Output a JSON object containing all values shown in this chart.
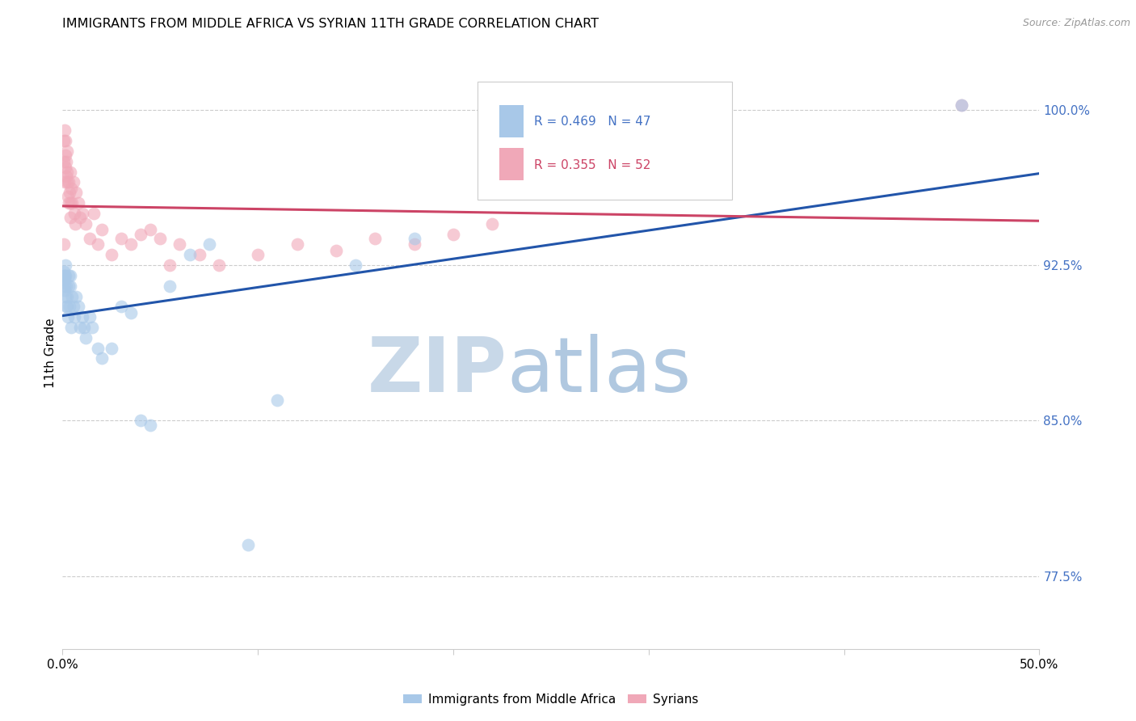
{
  "title": "IMMIGRANTS FROM MIDDLE AFRICA VS SYRIAN 11TH GRADE CORRELATION CHART",
  "source": "Source: ZipAtlas.com",
  "ylabel": "11th Grade",
  "xmin": 0.0,
  "xmax": 50.0,
  "ymin": 74.0,
  "ymax": 102.5,
  "blue_R": 0.469,
  "blue_N": 47,
  "pink_R": 0.355,
  "pink_N": 52,
  "blue_label": "Immigrants from Middle Africa",
  "pink_label": "Syrians",
  "blue_color": "#a8c8e8",
  "pink_color": "#f0a8b8",
  "blue_edge_color": "#88aacc",
  "pink_edge_color": "#d888a0",
  "blue_line_color": "#2255aa",
  "pink_line_color": "#cc4466",
  "watermark_zip_color": "#c8d8e8",
  "watermark_atlas_color": "#b0c8e0",
  "yticks": [
    77.5,
    85.0,
    92.5,
    100.0
  ],
  "xticks": [
    0,
    10,
    20,
    30,
    40,
    50
  ],
  "grid_color": "#cccccc",
  "blue_x": [
    0.05,
    0.07,
    0.08,
    0.1,
    0.11,
    0.12,
    0.13,
    0.14,
    0.15,
    0.16,
    0.18,
    0.2,
    0.22,
    0.25,
    0.28,
    0.3,
    0.32,
    0.35,
    0.38,
    0.4,
    0.45,
    0.5,
    0.55,
    0.6,
    0.7,
    0.8,
    0.9,
    1.0,
    1.1,
    1.2,
    1.4,
    1.5,
    1.8,
    2.0,
    2.5,
    3.0,
    3.5,
    4.0,
    4.5,
    5.5,
    6.5,
    7.5,
    9.5,
    11.0,
    15.0,
    18.0,
    46.0
  ],
  "blue_y": [
    92.0,
    91.8,
    92.2,
    91.5,
    92.0,
    91.3,
    91.8,
    92.5,
    92.0,
    91.0,
    90.5,
    91.5,
    91.0,
    90.5,
    90.0,
    92.0,
    91.5,
    90.5,
    92.0,
    91.5,
    89.5,
    91.0,
    90.5,
    90.0,
    91.0,
    90.5,
    89.5,
    90.0,
    89.5,
    89.0,
    90.0,
    89.5,
    88.5,
    88.0,
    88.5,
    90.5,
    90.2,
    85.0,
    84.8,
    91.5,
    93.0,
    93.5,
    79.0,
    86.0,
    92.5,
    93.8,
    100.2
  ],
  "pink_x": [
    0.05,
    0.06,
    0.08,
    0.1,
    0.12,
    0.14,
    0.15,
    0.17,
    0.18,
    0.2,
    0.22,
    0.24,
    0.25,
    0.28,
    0.3,
    0.32,
    0.35,
    0.38,
    0.4,
    0.42,
    0.45,
    0.5,
    0.55,
    0.6,
    0.65,
    0.7,
    0.8,
    0.9,
    1.0,
    1.2,
    1.4,
    1.6,
    1.8,
    2.0,
    2.5,
    3.0,
    3.5,
    4.0,
    4.5,
    5.0,
    5.5,
    6.0,
    7.0,
    8.0,
    10.0,
    12.0,
    14.0,
    16.0,
    18.0,
    20.0,
    22.0,
    46.0
  ],
  "pink_y": [
    93.5,
    97.5,
    98.5,
    96.5,
    99.0,
    97.8,
    98.5,
    97.2,
    96.8,
    97.5,
    98.0,
    96.5,
    97.0,
    95.8,
    96.5,
    95.5,
    96.0,
    94.8,
    95.5,
    97.0,
    96.2,
    95.5,
    96.5,
    95.0,
    94.5,
    96.0,
    95.5,
    94.8,
    95.0,
    94.5,
    93.8,
    95.0,
    93.5,
    94.2,
    93.0,
    93.8,
    93.5,
    94.0,
    94.2,
    93.8,
    92.5,
    93.5,
    93.0,
    92.5,
    93.0,
    93.5,
    93.2,
    93.8,
    93.5,
    94.0,
    94.5,
    100.2
  ]
}
